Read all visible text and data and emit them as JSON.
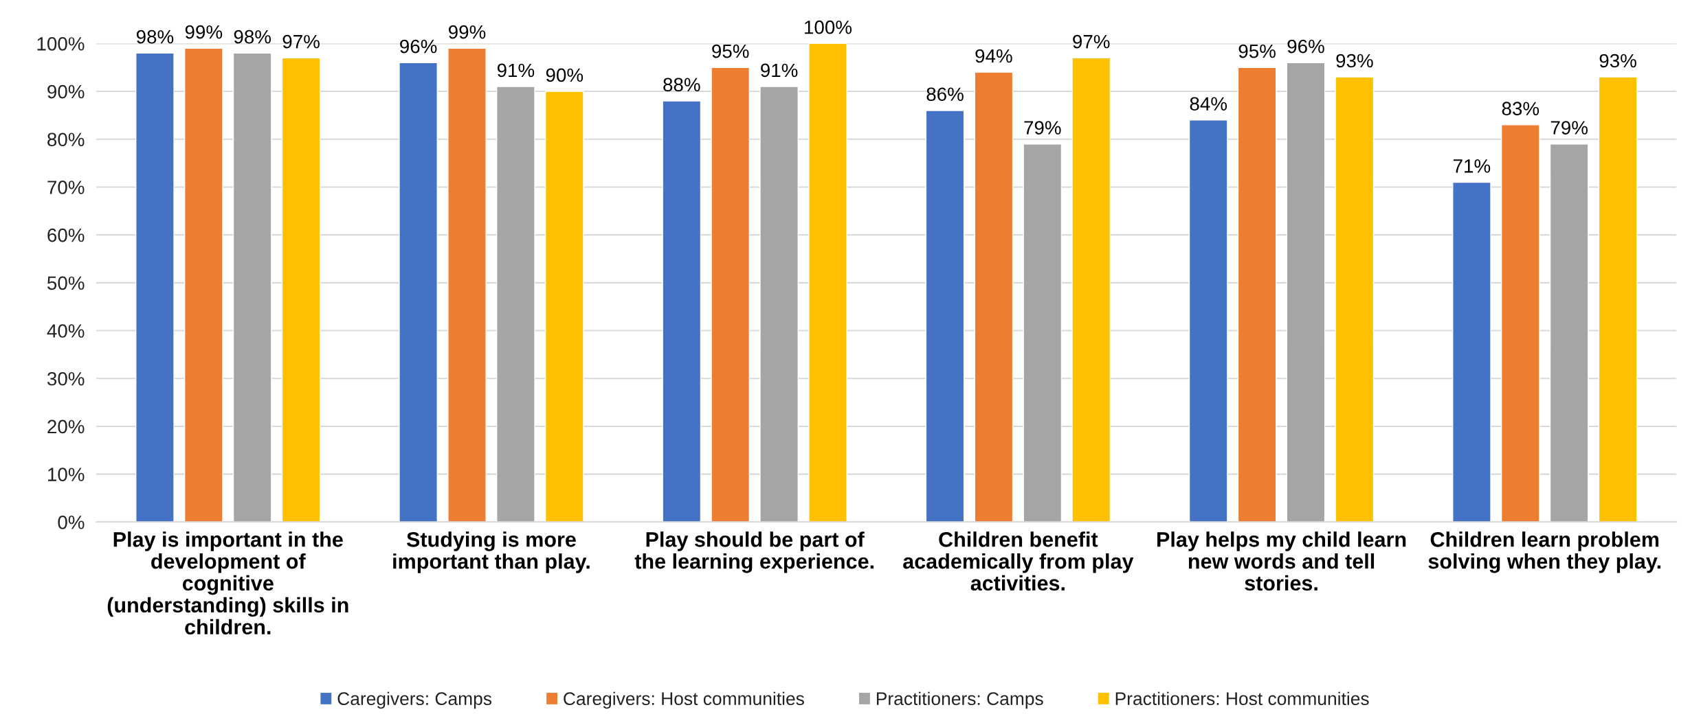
{
  "chart_data": {
    "type": "bar",
    "categories": [
      "Play is important in the development of cognitive (understanding) skills in children.",
      "Studying is more important than play.",
      "Play should be part of the learning experience.",
      "Children benefit academically from play activities.",
      "Play helps my child learn new words and tell stories.",
      "Children learn problem solving when they play."
    ],
    "series": [
      {
        "name": "Caregivers: Camps",
        "color": "#4472c4",
        "values": [
          98,
          96,
          88,
          86,
          84,
          71
        ],
        "value_labels": [
          "98%",
          "96%",
          "88%",
          "86%",
          "84%",
          "71%"
        ]
      },
      {
        "name": "Caregivers: Host communities",
        "color": "#ed7d31",
        "values": [
          99,
          99,
          95,
          94,
          95,
          83
        ],
        "value_labels": [
          "99%",
          "99%",
          "95%",
          "94%",
          "95%",
          "83%"
        ]
      },
      {
        "name": "Practitioners: Camps",
        "color": "#a5a5a5",
        "values": [
          98,
          91,
          91,
          79,
          96,
          79
        ],
        "value_labels": [
          "98%",
          "91%",
          "91%",
          "79%",
          "96%",
          "79%"
        ]
      },
      {
        "name": "Practitioners: Host communities",
        "color": "#ffc000",
        "values": [
          97,
          90,
          100,
          97,
          93,
          93
        ],
        "value_labels": [
          "97%",
          "90%",
          "100%",
          "97%",
          "93%",
          "93%"
        ]
      }
    ],
    "ylim": [
      0,
      100
    ],
    "yticks": [
      {
        "value": 0,
        "label": "0%"
      },
      {
        "value": 10,
        "label": "10%"
      },
      {
        "value": 20,
        "label": "20%"
      },
      {
        "value": 30,
        "label": "30%"
      },
      {
        "value": 40,
        "label": "40%"
      },
      {
        "value": 50,
        "label": "50%"
      },
      {
        "value": 60,
        "label": "60%"
      },
      {
        "value": 70,
        "label": "70%"
      },
      {
        "value": 80,
        "label": "80%"
      },
      {
        "value": 90,
        "label": "90%"
      },
      {
        "value": 100,
        "label": "100%"
      }
    ],
    "grid": "y",
    "legend": "bottom"
  }
}
